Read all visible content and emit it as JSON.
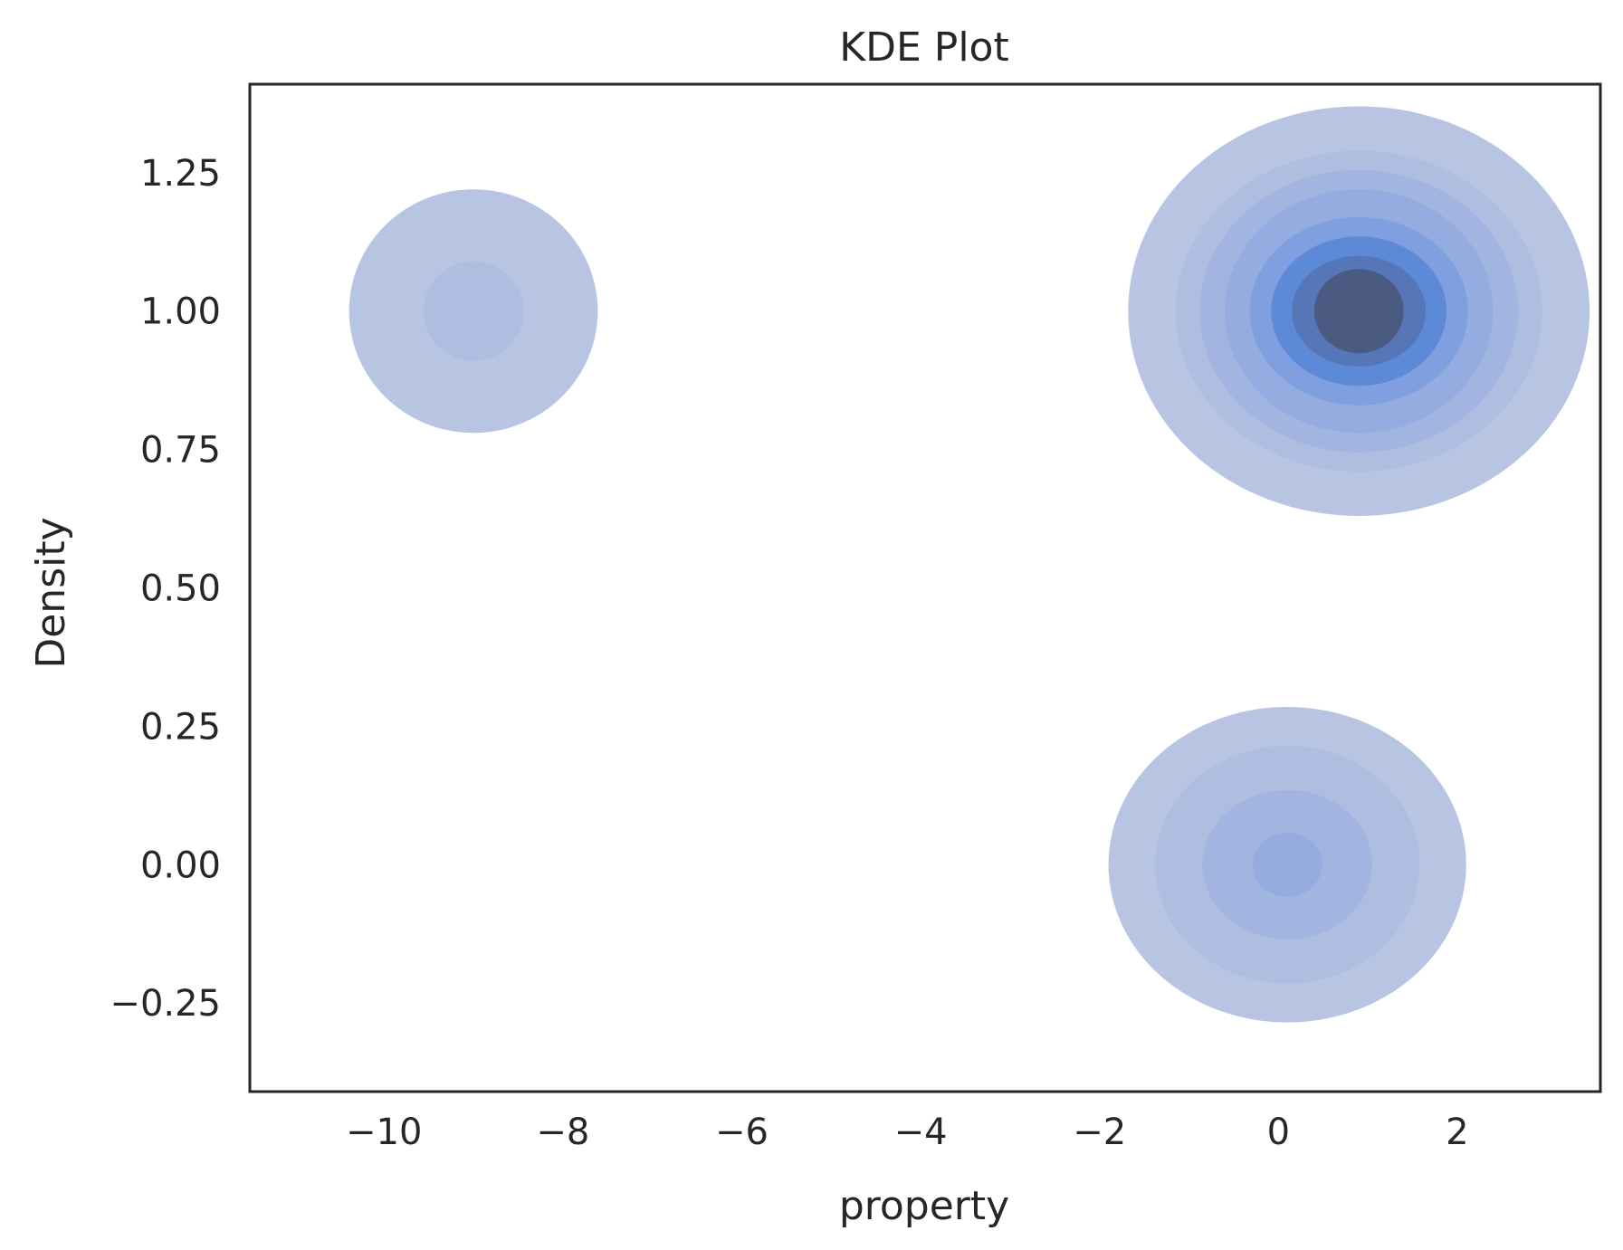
{
  "chart_data": {
    "type": "kde-2d-filled-contour",
    "title": "KDE Plot",
    "xlabel": "property",
    "ylabel": "Density",
    "xlim": [
      -11.5,
      3.6
    ],
    "ylim": [
      -0.41,
      1.41
    ],
    "xticks": [
      -10,
      -8,
      -6,
      -4,
      -2,
      0,
      2
    ],
    "xtick_labels": [
      "−10",
      "−8",
      "−6",
      "−4",
      "−2",
      "0",
      "2"
    ],
    "yticks": [
      -0.25,
      0.0,
      0.25,
      0.5,
      0.75,
      1.0,
      1.25
    ],
    "ytick_labels": [
      "−0.25",
      "0.00",
      "0.25",
      "0.50",
      "0.75",
      "1.00",
      "1.25"
    ],
    "grid": false,
    "colors": {
      "levels": [
        "#b8c5e2",
        "#afbde1",
        "#a2b5e0",
        "#94ace0",
        "#7f9fdf",
        "#5d8ad7",
        "#5676b7",
        "#4b5a80"
      ],
      "axes": "#262626",
      "background": "#ffffff"
    },
    "clusters": [
      {
        "center": [
          -9.0,
          1.0
        ],
        "contours": [
          {
            "level": 1,
            "rx": 1.39,
            "ry": 0.22
          },
          {
            "level": 2,
            "rx": 0.56,
            "ry": 0.09
          }
        ]
      },
      {
        "center": [
          0.9,
          1.0
        ],
        "contours": [
          {
            "level": 1,
            "rx": 2.58,
            "ry": 0.37
          },
          {
            "level": 2,
            "rx": 2.05,
            "ry": 0.29
          },
          {
            "level": 3,
            "rx": 1.78,
            "ry": 0.255
          },
          {
            "level": 4,
            "rx": 1.5,
            "ry": 0.22
          },
          {
            "level": 5,
            "rx": 1.22,
            "ry": 0.17
          },
          {
            "level": 6,
            "rx": 0.98,
            "ry": 0.135
          },
          {
            "level": 7,
            "rx": 0.75,
            "ry": 0.1
          },
          {
            "level": 8,
            "rx": 0.5,
            "ry": 0.076
          }
        ]
      },
      {
        "center": [
          0.1,
          0.0
        ],
        "contours": [
          {
            "level": 1,
            "rx": 2.0,
            "ry": 0.285
          },
          {
            "level": 2,
            "rx": 1.48,
            "ry": 0.215
          },
          {
            "level": 3,
            "rx": 0.95,
            "ry": 0.135
          },
          {
            "level": 4,
            "rx": 0.39,
            "ry": 0.058
          }
        ]
      }
    ]
  }
}
